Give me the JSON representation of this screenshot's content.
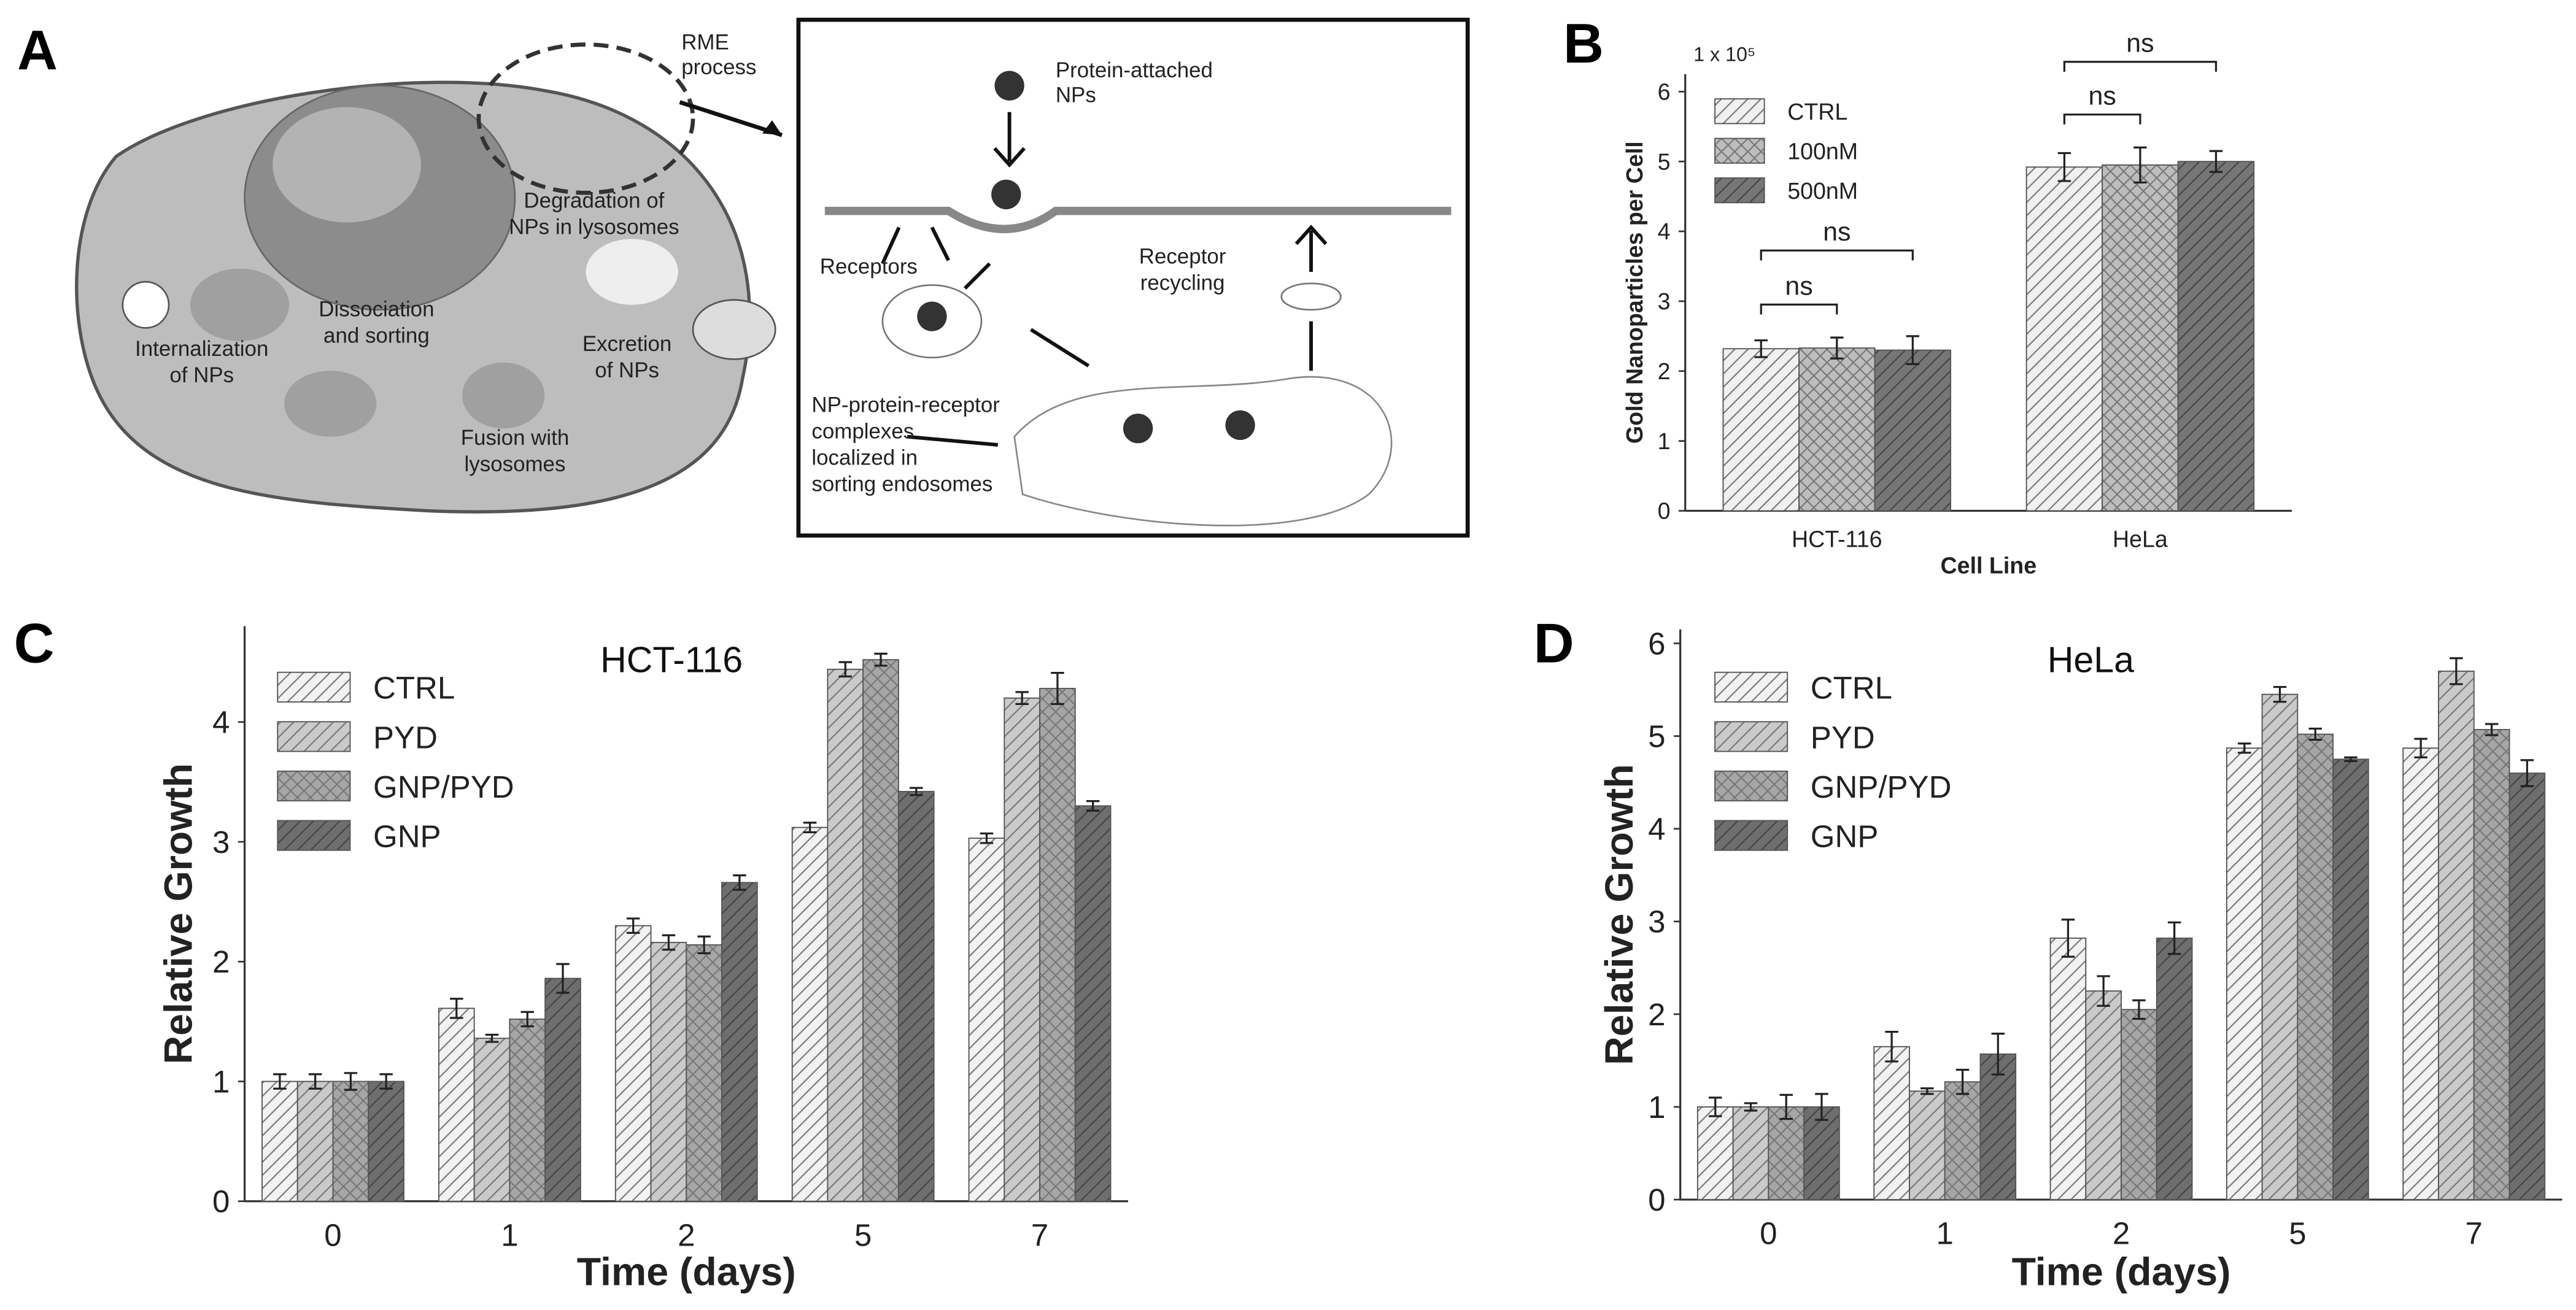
{
  "diagram": {
    "panel": "A",
    "labels": [
      [
        "RME",
        "process"
      ],
      [
        "Degradation of",
        "NPs in lysosomes"
      ],
      [
        "Dissociation",
        "and sorting"
      ],
      [
        "Internalization",
        "of NPs"
      ],
      [
        "Excretion",
        "of NPs"
      ],
      [
        "Fusion with",
        "lysosomes"
      ],
      [
        "Protein-attached",
        "NPs"
      ],
      [
        "Receptors"
      ],
      [
        "Receptor",
        "recycling"
      ],
      [
        "NP-protein-receptor",
        "complexes",
        "localized in",
        "sorting endosomes"
      ]
    ]
  },
  "chart_data": [
    {
      "panel": "B",
      "type": "bar",
      "ylabel": "Gold Nanoparticles per Cell",
      "xlabel": "Cell Line",
      "multiplier": "1 x 10⁵",
      "categories": [
        "HCT-116",
        "HeLa"
      ],
      "series": [
        {
          "name": "CTRL",
          "color": "#f0f0f0",
          "hatch": "/",
          "values": [
            2.32,
            4.92
          ],
          "errors": [
            0.12,
            0.2
          ]
        },
        {
          "name": "100nM",
          "color": "#bdbdbd",
          "hatch": "x",
          "values": [
            2.33,
            4.95
          ],
          "errors": [
            0.15,
            0.25
          ]
        },
        {
          "name": "500nM",
          "color": "#767676",
          "hatch": "/",
          "values": [
            2.3,
            5.0
          ],
          "errors": [
            0.2,
            0.15
          ]
        }
      ],
      "ylim": [
        0,
        6.25
      ],
      "yticks": [
        0,
        1,
        2,
        3,
        4,
        5,
        6
      ],
      "annotations": [
        {
          "text": "ns",
          "category": 0,
          "from": 0,
          "to": 1
        },
        {
          "text": "ns",
          "category": 0,
          "from": 0,
          "to": 2
        },
        {
          "text": "ns",
          "category": 1,
          "from": 0,
          "to": 1
        },
        {
          "text": "ns",
          "category": 1,
          "from": 0,
          "to": 2
        }
      ]
    },
    {
      "panel": "C",
      "type": "bar",
      "title": "HCT-116",
      "ylabel": "Relative Growth",
      "xlabel": "Time (days)",
      "categories": [
        "0",
        "1",
        "2",
        "5",
        "7"
      ],
      "series": [
        {
          "name": "CTRL",
          "color": "#f2f2f2",
          "hatch": "/",
          "values": [
            1.0,
            1.61,
            2.3,
            3.12,
            3.03
          ],
          "errors": [
            0.06,
            0.08,
            0.06,
            0.04,
            0.04
          ]
        },
        {
          "name": "PYD",
          "color": "#cacaca",
          "hatch": "/",
          "values": [
            1.0,
            1.36,
            2.16,
            4.44,
            4.2
          ],
          "errors": [
            0.06,
            0.03,
            0.06,
            0.06,
            0.05
          ]
        },
        {
          "name": "GNP/PYD",
          "color": "#a6a6a6",
          "hatch": "x",
          "values": [
            1.0,
            1.52,
            2.14,
            4.52,
            4.28
          ],
          "errors": [
            0.07,
            0.06,
            0.07,
            0.05,
            0.13
          ]
        },
        {
          "name": "GNP",
          "color": "#6e6e6e",
          "hatch": "/",
          "values": [
            1.0,
            1.86,
            2.66,
            3.42,
            3.3
          ],
          "errors": [
            0.06,
            0.12,
            0.06,
            0.03,
            0.04
          ]
        }
      ],
      "ylim": [
        0,
        4.8
      ],
      "yticks": [
        0,
        1,
        2,
        3,
        4
      ]
    },
    {
      "panel": "D",
      "type": "bar",
      "title": "HeLa",
      "ylabel": "Relative Growth",
      "xlabel": "Time (days)",
      "categories": [
        "0",
        "1",
        "2",
        "5",
        "7"
      ],
      "series": [
        {
          "name": "CTRL",
          "color": "#f2f2f2",
          "hatch": "/",
          "values": [
            1.0,
            1.65,
            2.82,
            4.87,
            4.87
          ],
          "errors": [
            0.1,
            0.16,
            0.2,
            0.05,
            0.1
          ]
        },
        {
          "name": "PYD",
          "color": "#cacaca",
          "hatch": "/",
          "values": [
            1.0,
            1.17,
            2.25,
            5.45,
            5.7
          ],
          "errors": [
            0.04,
            0.03,
            0.16,
            0.08,
            0.14
          ]
        },
        {
          "name": "GNP/PYD",
          "color": "#a6a6a6",
          "hatch": "x",
          "values": [
            1.0,
            1.27,
            2.05,
            5.02,
            5.07
          ],
          "errors": [
            0.13,
            0.13,
            0.1,
            0.06,
            0.06
          ]
        },
        {
          "name": "GNP",
          "color": "#6e6e6e",
          "hatch": "/",
          "values": [
            1.0,
            1.57,
            2.82,
            4.75,
            4.6
          ],
          "errors": [
            0.14,
            0.22,
            0.17,
            0.02,
            0.14
          ]
        }
      ],
      "ylim": [
        0,
        6.15
      ],
      "yticks": [
        0,
        1,
        2,
        3,
        4,
        5,
        6
      ]
    }
  ]
}
